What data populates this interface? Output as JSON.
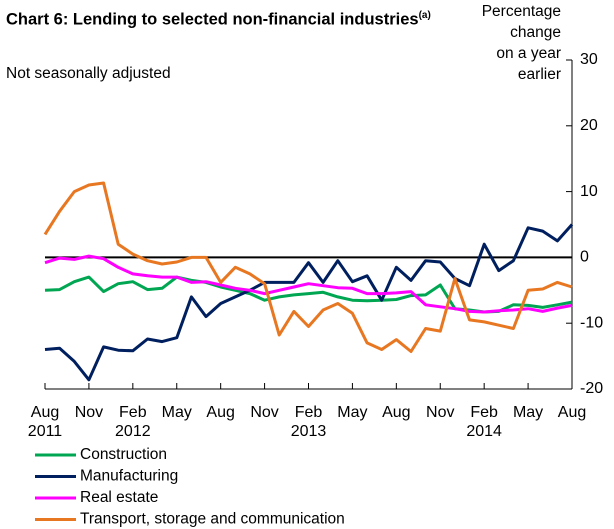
{
  "chart_data": {
    "type": "line",
    "title": "Chart 6: Lending to selected non-financial industries",
    "title_footnote": "(a)",
    "subtitle": "Not seasonally adjusted",
    "y_label": [
      "Percentage",
      "change",
      "on a year",
      "earlier"
    ],
    "categories": [
      "Aug",
      null,
      null,
      "Nov",
      null,
      null,
      "Feb",
      null,
      null,
      "May",
      null,
      null,
      "Aug",
      null,
      null,
      "Nov",
      null,
      null,
      "Feb",
      null,
      null,
      "May",
      null,
      null,
      "Aug",
      null,
      null,
      "Nov",
      null,
      null,
      "Feb",
      null,
      null,
      "May",
      null,
      null,
      "Aug"
    ],
    "year_labels": [
      "2011",
      null,
      null,
      null,
      null,
      null,
      "2012",
      null,
      null,
      null,
      null,
      null,
      null,
      null,
      null,
      null,
      null,
      null,
      "2013",
      null,
      null,
      null,
      null,
      null,
      null,
      null,
      null,
      null,
      null,
      null,
      "2014",
      null,
      null,
      null,
      null,
      null,
      null
    ],
    "ylim": [
      -20,
      30
    ],
    "yticks": [
      -20,
      -10,
      0,
      10,
      20,
      30
    ],
    "zero_line": true,
    "series": [
      {
        "name": "Construction",
        "color": "#00a651",
        "values": [
          -5,
          -4.9,
          -3.7,
          -3.0,
          -5.2,
          -4,
          -3.7,
          -4.9,
          -4.7,
          -3,
          -3.5,
          -3.8,
          -4.5,
          -5,
          -5.5,
          -6.5,
          -6,
          -5.7,
          -5.5,
          -5.3,
          -6,
          -6.5,
          -6.6,
          -6.5,
          -6.4,
          -5.8,
          -5.7,
          -4.2,
          -7.8,
          -8,
          -8.3,
          -8.2,
          -7.2,
          -7.3,
          -7.6,
          -7.2,
          -6.8
        ]
      },
      {
        "name": "Manufacturing",
        "color": "#001f5f",
        "values": [
          -14,
          -13.8,
          -15.8,
          -18.6,
          -13.6,
          -14.1,
          -14.2,
          -12.4,
          -12.8,
          -12.2,
          -6,
          -9,
          -7,
          -6,
          -5,
          -3.8,
          -3.8,
          -3.8,
          -0.8,
          -3.8,
          -0.5,
          -3.7,
          -2.8,
          -6.5,
          -1.5,
          -3.5,
          -0.5,
          -0.7,
          -3.2,
          -4.3,
          2,
          -2,
          -0.5,
          4.5,
          4,
          2.5,
          5
        ]
      },
      {
        "name": "Real estate",
        "color": "#ff00ff",
        "values": [
          -0.8,
          -0.1,
          -0.3,
          0.2,
          -0.2,
          -1.5,
          -2.5,
          -2.8,
          -3,
          -3,
          -3.8,
          -3.7,
          -4.2,
          -4.7,
          -5,
          -5.5,
          -5,
          -4.5,
          -4,
          -4.3,
          -4.6,
          -4.7,
          -5.5,
          -5.5,
          -5.4,
          -5.2,
          -7.2,
          -7.5,
          -7.8,
          -8.2,
          -8.3,
          -8.1,
          -8,
          -7.8,
          -8.2,
          -7.7,
          -7.3
        ]
      },
      {
        "name": "Transport, storage and communication",
        "color": "#e87722",
        "values": [
          3.5,
          7,
          10,
          11,
          11.3,
          2,
          0.5,
          -0.5,
          -1,
          -0.7,
          0,
          0,
          -3.8,
          -1.5,
          -2.5,
          -4,
          -11.8,
          -8.2,
          -10.5,
          -8,
          -7,
          -8.5,
          -13,
          -14,
          -12.5,
          -14.3,
          -10.8,
          -11.2,
          -3.2,
          -9.5,
          -9.8,
          -10.3,
          -10.8,
          -5,
          -4.8,
          -3.8,
          -4.5
        ]
      }
    ]
  }
}
